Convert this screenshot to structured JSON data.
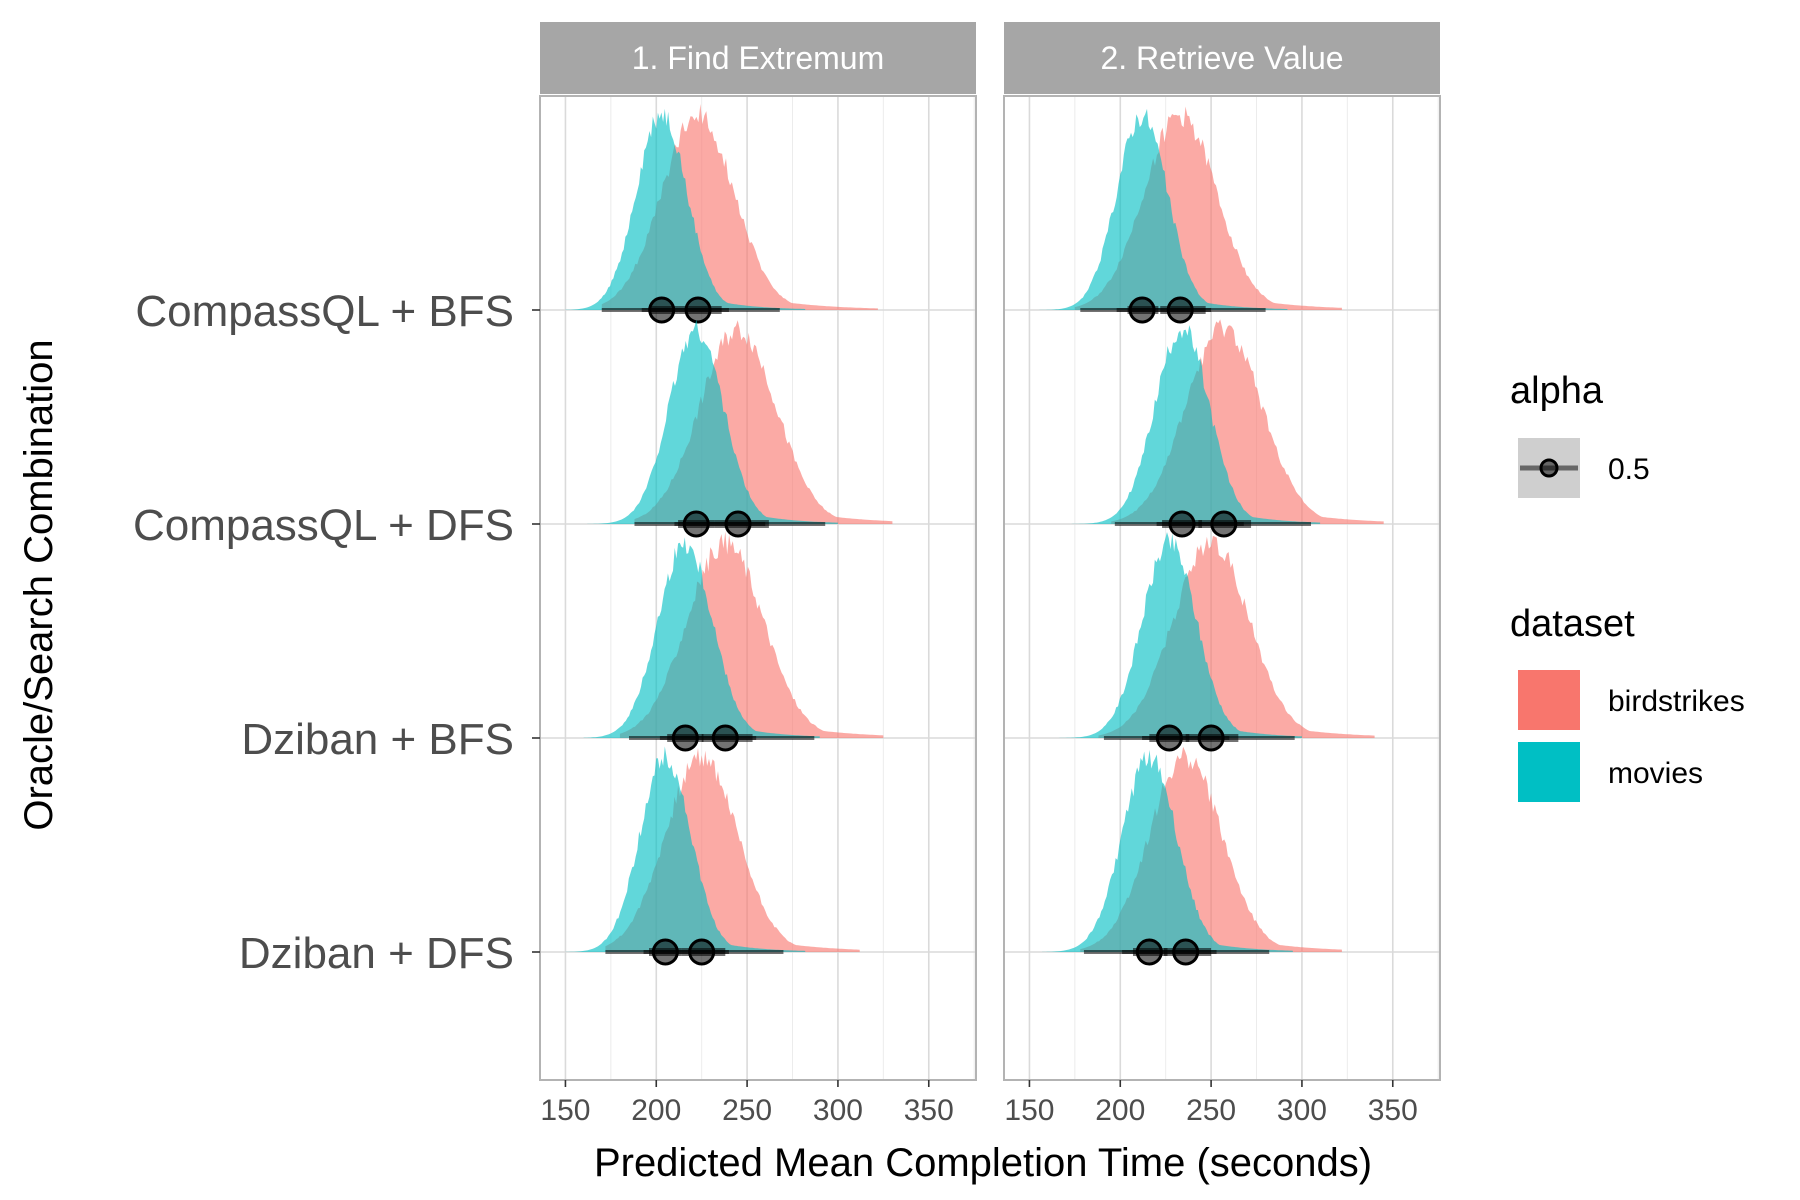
{
  "chart_data": {
    "type": "density-interval (half-eye) faceted plot",
    "xlabel": "Predicted Mean Completion Time (seconds)",
    "ylabel": "Oracle/Search Combination",
    "xlim": [
      136,
      376
    ],
    "x_ticks": [
      150,
      200,
      250,
      300,
      350
    ],
    "x_tick_labels": [
      "150",
      "200",
      "250",
      "300",
      "350"
    ],
    "grid": true,
    "facets": [
      {
        "label": "1. Find Extremum"
      },
      {
        "label": "2. Retrieve Value"
      }
    ],
    "categories": [
      "CompassQL + BFS",
      "CompassQL + DFS",
      "Dziban + BFS",
      "Dziban + DFS"
    ],
    "series": [
      {
        "name": "birdstrikes",
        "color": "#F8766D"
      },
      {
        "name": "movies",
        "color": "#00BFC4"
      }
    ],
    "intervals": {
      "1. Find Extremum": {
        "CompassQL + BFS": {
          "birdstrikes": {
            "median": 223,
            "q66": [
              212,
              236
            ],
            "q95": [
              192,
              268
            ],
            "range": [
              170,
              322
            ],
            "sd": 20
          },
          "movies": {
            "median": 203,
            "q66": [
              196,
              212
            ],
            "q95": [
              170,
              240
            ],
            "range": [
              150,
              282
            ],
            "sd": 14
          }
        },
        "CompassQL + DFS": {
          "birdstrikes": {
            "median": 245,
            "q66": [
              232,
              262
            ],
            "q95": [
              210,
              293
            ],
            "range": [
              188,
              330
            ],
            "sd": 21
          },
          "movies": {
            "median": 222,
            "q66": [
              212,
              232
            ],
            "q95": [
              188,
              260
            ],
            "range": [
              162,
              300
            ],
            "sd": 15
          }
        },
        "Dziban + BFS": {
          "birdstrikes": {
            "median": 238,
            "q66": [
              225,
              253
            ],
            "q95": [
              202,
              287
            ],
            "range": [
              180,
              325
            ],
            "sd": 21
          },
          "movies": {
            "median": 216,
            "q66": [
              206,
              226
            ],
            "q95": [
              185,
              255
            ],
            "range": [
              160,
              290
            ],
            "sd": 15
          }
        },
        "Dziban + DFS": {
          "birdstrikes": {
            "median": 225,
            "q66": [
              214,
              238
            ],
            "q95": [
              193,
              270
            ],
            "range": [
              172,
              312
            ],
            "sd": 20
          },
          "movies": {
            "median": 205,
            "q66": [
              196,
              214
            ],
            "q95": [
              172,
              240
            ],
            "range": [
              150,
              282
            ],
            "sd": 14
          }
        }
      },
      "2. Retrieve Value": {
        "CompassQL + BFS": {
          "birdstrikes": {
            "median": 233,
            "q66": [
              222,
              247
            ],
            "q95": [
              198,
              280
            ],
            "range": [
              175,
              322
            ],
            "sd": 20
          },
          "movies": {
            "median": 212,
            "q66": [
              204,
              221
            ],
            "q95": [
              178,
              250
            ],
            "range": [
              155,
              292
            ],
            "sd": 14
          }
        },
        "CompassQL + DFS": {
          "birdstrikes": {
            "median": 257,
            "q66": [
              243,
              272
            ],
            "q95": [
              220,
              305
            ],
            "range": [
              195,
              345
            ],
            "sd": 21
          },
          "movies": {
            "median": 234,
            "q66": [
              223,
              245
            ],
            "q95": [
              197,
              268
            ],
            "range": [
              170,
              310
            ],
            "sd": 15
          }
        },
        "Dziban + BFS": {
          "birdstrikes": {
            "median": 250,
            "q66": [
              236,
              265
            ],
            "q95": [
              212,
              296
            ],
            "range": [
              188,
              340
            ],
            "sd": 21
          },
          "movies": {
            "median": 227,
            "q66": [
              216,
              238
            ],
            "q95": [
              191,
              260
            ],
            "range": [
              165,
              300
            ],
            "sd": 15
          }
        },
        "Dziban + DFS": {
          "birdstrikes": {
            "median": 236,
            "q66": [
              224,
              250
            ],
            "q95": [
              201,
              282
            ],
            "range": [
              178,
              322
            ],
            "sd": 20
          },
          "movies": {
            "median": 216,
            "q66": [
              207,
              226
            ],
            "q95": [
              180,
              253
            ],
            "range": [
              157,
              295
            ],
            "sd": 15
          }
        }
      }
    }
  },
  "legend": {
    "alpha": {
      "title": "alpha",
      "label": "0.5"
    },
    "dataset": {
      "title": "dataset",
      "items": [
        "birdstrikes",
        "movies"
      ]
    }
  }
}
